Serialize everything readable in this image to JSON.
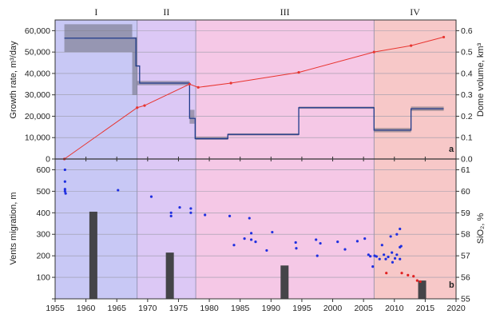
{
  "chart_data": {
    "type": "line",
    "x_axis": {
      "ticks": [
        1955,
        1960,
        1965,
        1970,
        1975,
        1980,
        1985,
        1990,
        1995,
        2000,
        2005,
        2010,
        2015,
        2020
      ],
      "range": [
        1955,
        2020
      ]
    },
    "periods": [
      {
        "label": "I",
        "start": 1955,
        "end": 1968.3,
        "color": "#c8c8f5"
      },
      {
        "label": "II",
        "start": 1968.3,
        "end": 1977.8,
        "color": "#dcc8f5"
      },
      {
        "label": "III",
        "start": 1977.8,
        "end": 2006.7,
        "color": "#f5c8e6"
      },
      {
        "label": "IV",
        "start": 2006.7,
        "end": 2020,
        "color": "#f7c8c8"
      }
    ],
    "panel_a": {
      "label": "a",
      "ylabel_left": "Growth rate, m³/day",
      "ylabel_right": "Dome volume, km³",
      "ylim_left": [
        0,
        65000
      ],
      "ylim_right": [
        0,
        0.65
      ],
      "yticks_left": [
        "0",
        "10,000",
        "20,000",
        "30,000",
        "40,000",
        "50,000",
        "60,000"
      ],
      "yticks_right": [
        "0.0",
        "0.1",
        "0.2",
        "0.3",
        "0.4",
        "0.5",
        "0.6"
      ],
      "growth_rate_step": {
        "x": [
          1956.5,
          1968.1,
          1968.1,
          1968.7,
          1968.7,
          1976.8,
          1976.8,
          1977.7,
          1977.7,
          1983.0,
          1983.0,
          1994.5,
          1994.5,
          2006.7,
          2006.7,
          2012.7,
          2012.7,
          2018.0
        ],
        "y": [
          56500,
          56500,
          43500,
          43500,
          35500,
          35500,
          19000,
          19000,
          9500,
          9500,
          11500,
          11500,
          24000,
          24000,
          13500,
          13500,
          23500,
          23500
        ]
      },
      "growth_rate_bands": [
        {
          "x0": 1956.5,
          "x1": 1967.5,
          "y0": 50000,
          "y1": 63000
        },
        {
          "x0": 1967.5,
          "x1": 1968.3,
          "y0": 30000,
          "y1": 57000
        },
        {
          "x0": 1968.3,
          "x1": 1976.8,
          "y0": 34500,
          "y1": 36500
        },
        {
          "x0": 1976.8,
          "x1": 1977.6,
          "y0": 16500,
          "y1": 23000
        },
        {
          "x0": 1977.8,
          "x1": 1983.0,
          "y0": 9000,
          "y1": 10500
        },
        {
          "x0": 1983.0,
          "x1": 1994.5,
          "y0": 11000,
          "y1": 12000
        },
        {
          "x0": 1994.5,
          "x1": 2006.7,
          "y0": 23500,
          "y1": 24500
        },
        {
          "x0": 2006.7,
          "x1": 2012.7,
          "y0": 12500,
          "y1": 14500
        },
        {
          "x0": 2012.7,
          "x1": 2018.0,
          "y0": 22500,
          "y1": 24500
        }
      ],
      "dome_volume": {
        "x": [
          1956.5,
          1968.3,
          1969.5,
          1976.8,
          1978.2,
          1983.5,
          1994.5,
          2006.7,
          2012.7,
          2018.0
        ],
        "y": [
          0.0,
          0.24,
          0.25,
          0.35,
          0.335,
          0.355,
          0.405,
          0.5,
          0.53,
          0.57
        ]
      }
    },
    "panel_b": {
      "label": "b",
      "ylabel_left": "Vents migration, m",
      "ylabel_right": "SiO₂, %",
      "ylim_left": [
        0,
        650
      ],
      "ylim_right": [
        55,
        61.5
      ],
      "yticks_left": [
        "0",
        "100",
        "200",
        "300",
        "400",
        "500",
        "600"
      ],
      "yticks_right": [
        "55",
        "56",
        "57",
        "58",
        "59",
        "60",
        "61"
      ],
      "vents_migration": [
        {
          "x": 1956.6,
          "y": 600
        },
        {
          "x": 1956.6,
          "y": 545
        },
        {
          "x": 1956.6,
          "y": 510
        },
        {
          "x": 1956.6,
          "y": 500
        },
        {
          "x": 1956.7,
          "y": 490
        },
        {
          "x": 1965.2,
          "y": 505
        },
        {
          "x": 1970.6,
          "y": 475
        },
        {
          "x": 1973.8,
          "y": 400
        },
        {
          "x": 1973.8,
          "y": 385
        },
        {
          "x": 1975.2,
          "y": 425
        },
        {
          "x": 1977.0,
          "y": 420
        },
        {
          "x": 1977.0,
          "y": 400
        },
        {
          "x": 1979.3,
          "y": 390
        },
        {
          "x": 1983.3,
          "y": 385
        },
        {
          "x": 1984.0,
          "y": 250
        },
        {
          "x": 1985.7,
          "y": 280
        },
        {
          "x": 1986.5,
          "y": 375
        },
        {
          "x": 1986.8,
          "y": 305
        },
        {
          "x": 1986.8,
          "y": 275
        },
        {
          "x": 1987.5,
          "y": 265
        },
        {
          "x": 1989.3,
          "y": 225
        },
        {
          "x": 1990.2,
          "y": 310
        },
        {
          "x": 1994.0,
          "y": 262
        },
        {
          "x": 1994.1,
          "y": 235
        },
        {
          "x": 1997.3,
          "y": 275
        },
        {
          "x": 1997.5,
          "y": 200
        },
        {
          "x": 1998.0,
          "y": 258
        },
        {
          "x": 2000.8,
          "y": 265
        },
        {
          "x": 2002.0,
          "y": 230
        },
        {
          "x": 2004.0,
          "y": 268
        },
        {
          "x": 2005.2,
          "y": 280
        },
        {
          "x": 2005.8,
          "y": 205
        },
        {
          "x": 2006.1,
          "y": 198
        },
        {
          "x": 2006.8,
          "y": 200
        },
        {
          "x": 2007.1,
          "y": 197
        },
        {
          "x": 2007.6,
          "y": 185
        },
        {
          "x": 2008.0,
          "y": 250
        },
        {
          "x": 2008.3,
          "y": 205
        },
        {
          "x": 2008.6,
          "y": 185
        },
        {
          "x": 2009.0,
          "y": 195
        },
        {
          "x": 2009.4,
          "y": 290
        },
        {
          "x": 2009.6,
          "y": 215
        },
        {
          "x": 2010.1,
          "y": 188
        },
        {
          "x": 2010.4,
          "y": 300
        },
        {
          "x": 2010.4,
          "y": 205
        },
        {
          "x": 2010.9,
          "y": 325
        },
        {
          "x": 2010.9,
          "y": 240
        },
        {
          "x": 2010.9,
          "y": 185
        },
        {
          "x": 2011.1,
          "y": 245
        },
        {
          "x": 2006.5,
          "y": 150
        },
        {
          "x": 2009.7,
          "y": 170
        }
      ],
      "sio2": [
        {
          "x": 2008.7,
          "y": 56.2
        },
        {
          "x": 2011.2,
          "y": 56.2
        },
        {
          "x": 2012.2,
          "y": 56.1
        },
        {
          "x": 2013.1,
          "y": 56.05
        },
        {
          "x": 2013.7,
          "y": 55.85
        },
        {
          "x": 2014.2,
          "y": 55.8
        }
      ],
      "sio2_bars": [
        {
          "x": 1961.2,
          "value": 59.05
        },
        {
          "x": 1973.6,
          "value": 57.15
        },
        {
          "x": 1992.2,
          "value": 56.55
        },
        {
          "x": 2014.5,
          "value": 55.85
        }
      ]
    }
  },
  "colors": {
    "growth_line": "#1f3a8a",
    "band": "#6e6e7a",
    "volume_line": "#e8342f",
    "vents_dot": "#1f2fe0",
    "sio2_dot": "#e02020",
    "bar": "#444448"
  }
}
